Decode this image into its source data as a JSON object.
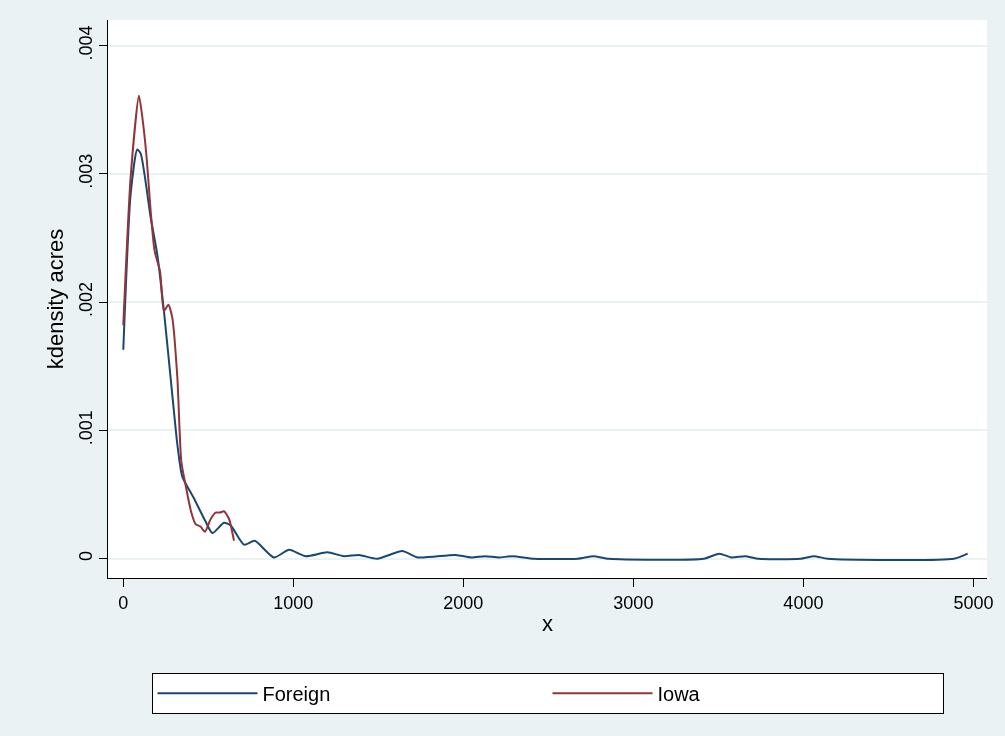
{
  "chart_data": {
    "type": "line",
    "xlabel": "x",
    "ylabel": "kdensity acres",
    "xlim": [
      -90,
      5080
    ],
    "xticks": [
      0,
      1000,
      2000,
      3000,
      4000,
      5000
    ],
    "ylim": [
      -0.00015,
      0.0042
    ],
    "yticks": [
      {
        "value": 0,
        "label": "0"
      },
      {
        "value": 0.001,
        "label": ".001"
      },
      {
        "value": 0.002,
        "label": ".002"
      },
      {
        "value": 0.003,
        "label": ".003"
      },
      {
        "value": 0.004,
        "label": ".004"
      }
    ],
    "grid": "y",
    "legend": "bottom",
    "line_style": "solid",
    "marker": "none",
    "series": [
      {
        "name": "Foreign",
        "color": "#1a476f",
        "x": [
          0,
          43,
          82,
          102,
          161,
          200,
          239,
          288,
          318,
          347,
          416,
          484,
          524,
          592,
          631,
          710,
          773,
          886,
          975,
          1073,
          1200,
          1298,
          1386,
          1494,
          1641,
          1733,
          1954,
          2046,
          2127,
          2209,
          2290,
          2417,
          2672,
          2765,
          2857,
          3414,
          3506,
          3576,
          3657,
          3738,
          3981,
          4063,
          4144,
          4885,
          4966
        ],
        "values": [
          0.00163,
          0.00284,
          0.00319,
          0.00316,
          0.00266,
          0.00237,
          0.00193,
          0.00128,
          0.00089,
          0.00064,
          0.00047,
          0.00029,
          0.0002,
          0.00028,
          0.00026,
          0.00011,
          0.00014,
          1e-05,
          7e-05,
          2e-05,
          5e-05,
          2e-05,
          3e-05,
          0,
          6e-05,
          1e-05,
          3e-05,
          1e-05,
          2e-05,
          1e-05,
          2e-05,
          0,
          0,
          2e-05,
          0,
          0,
          4e-05,
          1e-05,
          2e-05,
          0,
          0,
          2e-05,
          0,
          0,
          4e-05
        ]
      },
      {
        "name": "Iowa",
        "color": "#90353b",
        "x": [
          0,
          43,
          92,
          112,
          137,
          161,
          184,
          216,
          239,
          265,
          288,
          318,
          341,
          367,
          400,
          425,
          455,
          480,
          514,
          543,
          569,
          592,
          622,
          651
        ],
        "values": [
          0.00182,
          0.00297,
          0.00361,
          0.00344,
          0.00313,
          0.00271,
          0.0024,
          0.00224,
          0.00193,
          0.00198,
          0.00188,
          0.00141,
          0.00076,
          0.00057,
          0.00036,
          0.00027,
          0.00025,
          0.00021,
          0.00031,
          0.00036,
          0.00036,
          0.00037,
          0.00031,
          0.00014
        ]
      }
    ]
  }
}
